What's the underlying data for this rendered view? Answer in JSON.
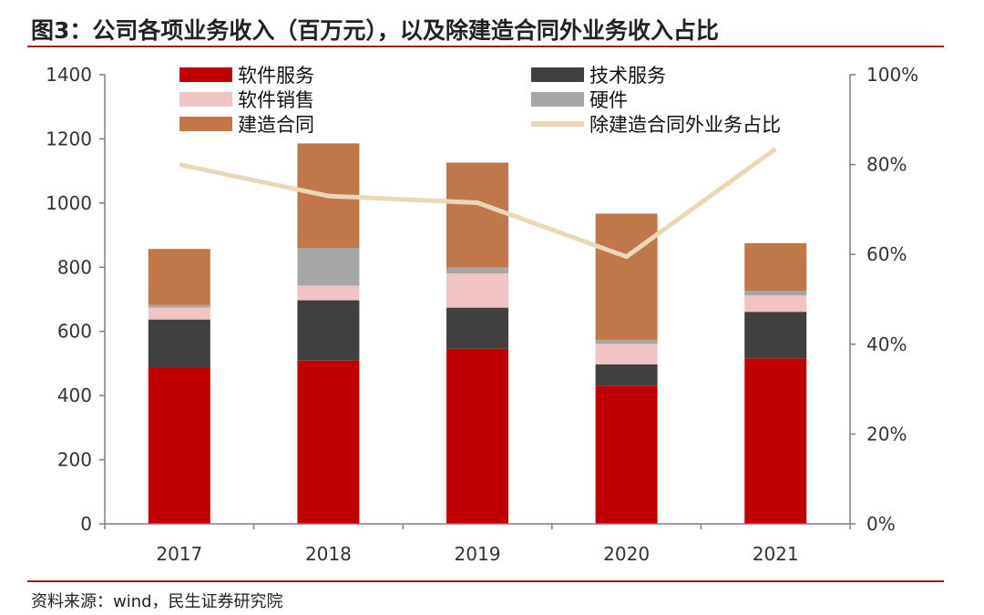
{
  "title": "图3：公司各项业务收入（百万元），以及除建造合同外业务收入占比",
  "source": "资料来源：wind，民生证券研究院",
  "colors": {
    "software_services": "#c00000",
    "tech_services": "#404040",
    "software_sales": "#f0c4c4",
    "hardware": "#a6a6a6",
    "construction": "#c0784a",
    "ratio_line": "#ead7b5",
    "axis": "#7f7f7f",
    "rule": "#9b1c1c"
  },
  "chart_data": {
    "type": "bar",
    "stacked": true,
    "categories": [
      "2017",
      "2018",
      "2019",
      "2020",
      "2021"
    ],
    "series": [
      {
        "name": "软件服务",
        "key": "software_services",
        "values": [
          487,
          509,
          546,
          431,
          516
        ]
      },
      {
        "name": "技术服务",
        "key": "tech_services",
        "values": [
          150,
          188,
          128,
          66,
          145
        ]
      },
      {
        "name": "软件销售",
        "key": "software_sales",
        "values": [
          37,
          46,
          107,
          64,
          51
        ]
      },
      {
        "name": "硬件",
        "key": "hardware",
        "values": [
          8,
          117,
          18,
          12,
          14
        ]
      },
      {
        "name": "建造合同",
        "key": "construction",
        "values": [
          175,
          326,
          327,
          394,
          149
        ]
      }
    ],
    "line_series": {
      "name": "除建造合同外业务占比",
      "key": "ratio_line",
      "axis": "right",
      "values": [
        0.8,
        0.73,
        0.715,
        0.595,
        0.835
      ]
    },
    "ylim": [
      0,
      1400
    ],
    "yticks": [
      "0",
      "200",
      "400",
      "600",
      "800",
      "1000",
      "1200",
      "1400"
    ],
    "y2lim": [
      0,
      1
    ],
    "y2ticks": [
      "0%",
      "20%",
      "40%",
      "60%",
      "80%",
      "100%"
    ],
    "legend": {
      "left": [
        "软件服务",
        "软件销售",
        "建造合同"
      ],
      "right": [
        "技术服务",
        "硬件",
        "除建造合同外业务占比"
      ]
    },
    "xlabel": "",
    "ylabel": ""
  }
}
